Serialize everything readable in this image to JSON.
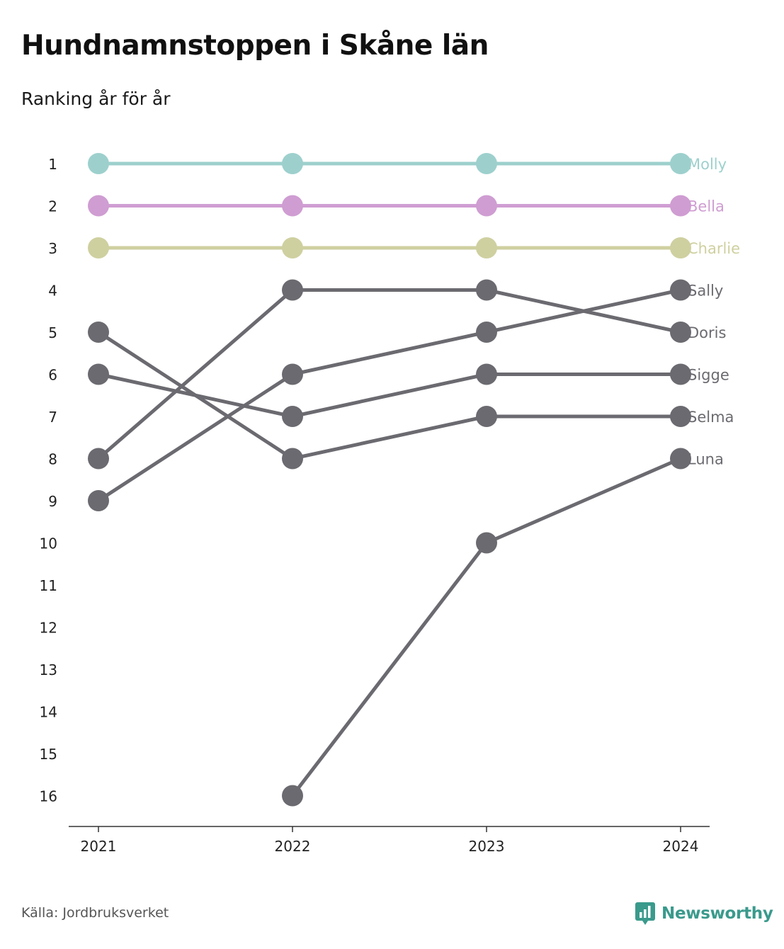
{
  "title": "Hundnamnstoppen i Skåne län",
  "subtitle": "Ranking år för år",
  "source": "Källa: Jordbruksverket",
  "brand": "Newsworthy",
  "chart_data": {
    "type": "line",
    "x": [
      "2021",
      "2022",
      "2023",
      "2024"
    ],
    "y_ticks": [
      "1",
      "2",
      "3",
      "4",
      "5",
      "6",
      "7",
      "8",
      "9",
      "10",
      "11",
      "12",
      "13",
      "14",
      "15",
      "16"
    ],
    "ylim": [
      1,
      16
    ],
    "y_reversed": true,
    "grid": false,
    "series": [
      {
        "name": "Molly",
        "values": [
          1,
          1,
          1,
          1
        ],
        "color": "#9dd0cd"
      },
      {
        "name": "Bella",
        "values": [
          2,
          2,
          2,
          2
        ],
        "color": "#cf9dd2"
      },
      {
        "name": "Charlie",
        "values": [
          3,
          3,
          3,
          3
        ],
        "color": "#cfd0a0"
      },
      {
        "name": "Sally",
        "values": [
          9,
          6,
          5,
          4
        ],
        "color": "#6b6a70"
      },
      {
        "name": "Doris",
        "values": [
          8,
          4,
          4,
          5
        ],
        "color": "#6b6a70"
      },
      {
        "name": "Sigge",
        "values": [
          6,
          7,
          6,
          6
        ],
        "color": "#6b6a70"
      },
      {
        "name": "Selma",
        "values": [
          5,
          8,
          7,
          7
        ],
        "color": "#6b6a70"
      },
      {
        "name": "Luna",
        "values": [
          null,
          16,
          10,
          8
        ],
        "color": "#6b6a70"
      }
    ]
  }
}
